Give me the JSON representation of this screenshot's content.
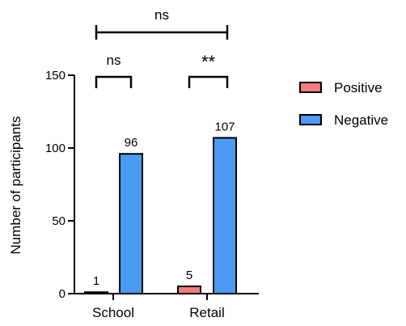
{
  "chart_data": {
    "type": "bar",
    "categories": [
      "School",
      "Retail"
    ],
    "series": [
      {
        "name": "Positive",
        "values": [
          1,
          5
        ],
        "color": "#F47C7C"
      },
      {
        "name": "Negative",
        "values": [
          96,
          107
        ],
        "color": "#4B9BF2"
      }
    ],
    "ylabel": "Number of participants",
    "xlabel": "",
    "title": "",
    "ylim": [
      0,
      150
    ],
    "yticks": [
      0,
      50,
      100,
      150
    ],
    "grid": false,
    "legend_position": "right",
    "significance": {
      "within_category": [
        "ns",
        "**"
      ],
      "between_categories": "ns"
    }
  }
}
